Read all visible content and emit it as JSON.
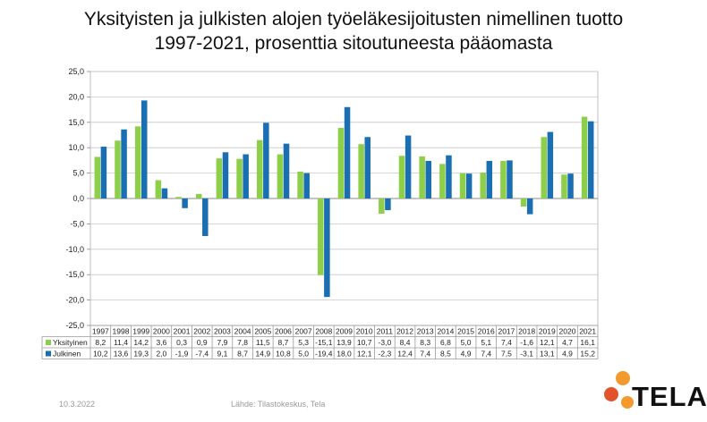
{
  "title_line1": "Yksityisten ja julkisten alojen työeläkesijoitusten nimellinen tuotto",
  "title_line2": "1997-2021, prosenttia sitoutuneesta pääomasta",
  "footer": {
    "date": "10.3.2022",
    "source": "Lähde: Tilastokeskus, Tela"
  },
  "logo": {
    "text": "TELA"
  },
  "colors": {
    "yksityinen": "#8ecf4a",
    "julkinen": "#1a6fb3",
    "logo_orange": "#f29a2e",
    "logo_red": "#e2532b"
  },
  "chart_data": {
    "type": "bar",
    "categories": [
      "1997",
      "1998",
      "1999",
      "2000",
      "2001",
      "2002",
      "2003",
      "2004",
      "2005",
      "2006",
      "2007",
      "2008",
      "2009",
      "2010",
      "2011",
      "2012",
      "2013",
      "2014",
      "2015",
      "2016",
      "2017",
      "2018",
      "2019",
      "2020",
      "2021"
    ],
    "series": [
      {
        "name": "Yksityinen",
        "color": "#8ecf4a",
        "values": [
          8.2,
          11.4,
          14.2,
          3.6,
          0.3,
          0.9,
          7.9,
          7.8,
          11.5,
          8.7,
          5.3,
          -15.1,
          13.9,
          10.7,
          -3.0,
          8.4,
          8.3,
          6.8,
          5.0,
          5.1,
          7.4,
          -1.6,
          12.1,
          4.7,
          16.1
        ],
        "labels": [
          "8,2",
          "11,4",
          "14,2",
          "3,6",
          "0,3",
          "0,9",
          "7,9",
          "7,8",
          "11,5",
          "8,7",
          "5,3",
          "-15,1",
          "13,9",
          "10,7",
          "-3,0",
          "8,4",
          "8,3",
          "6,8",
          "5,0",
          "5,1",
          "7,4",
          "-1,6",
          "12,1",
          "4,7",
          "16,1"
        ]
      },
      {
        "name": "Julkinen",
        "color": "#1a6fb3",
        "values": [
          10.2,
          13.6,
          19.3,
          2.0,
          -1.9,
          -7.4,
          9.1,
          8.7,
          14.9,
          10.8,
          5.0,
          -19.4,
          18.0,
          12.1,
          -2.3,
          12.4,
          7.4,
          8.5,
          4.9,
          7.4,
          7.5,
          -3.1,
          13.1,
          4.9,
          15.2
        ],
        "labels": [
          "10,2",
          "13,6",
          "19,3",
          "2,0",
          "-1,9",
          "-7,4",
          "9,1",
          "8,7",
          "14,9",
          "10,8",
          "5,0",
          "-19,4",
          "18,0",
          "12,1",
          "-2,3",
          "12,4",
          "7,4",
          "8,5",
          "4,9",
          "7,4",
          "7,5",
          "-3,1",
          "13,1",
          "4,9",
          "15,2"
        ]
      }
    ],
    "ylim": [
      -25,
      25
    ],
    "yticks": [
      25,
      20,
      15,
      10,
      5,
      0,
      -5,
      -10,
      -15,
      -20,
      -25
    ],
    "ytick_labels": [
      "25,0",
      "20,0",
      "15,0",
      "10,0",
      "5,0",
      "0,0",
      "-5,0",
      "-10,0",
      "-15,0",
      "-20,0",
      "-25,0"
    ],
    "grid": true,
    "legend": "data-table"
  }
}
